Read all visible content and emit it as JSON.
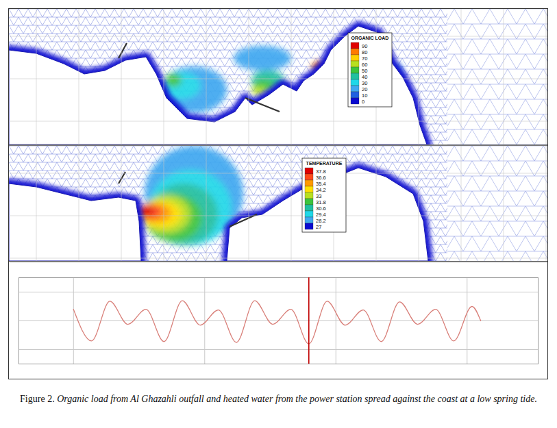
{
  "maps": [
    {
      "color_bar": {
        "title": "ORGANIC LOAD",
        "values": [
          90,
          80,
          70,
          60,
          50,
          40,
          30,
          20,
          10,
          0
        ],
        "colors": [
          "#e00000",
          "#ff7a00",
          "#ffd000",
          "#b8e020",
          "#3cc43c",
          "#20c0a0",
          "#20d8e8",
          "#40a8f0",
          "#2060e0",
          "#0a0ad0"
        ]
      }
    },
    {
      "color_bar": {
        "title": "TEMPERATURE",
        "values": [
          37.8,
          36.6,
          35.4,
          34.2,
          33,
          31.8,
          30.6,
          29.4,
          28.2,
          27
        ],
        "colors": [
          "#e00000",
          "#ff4a1a",
          "#ff9a00",
          "#ffe000",
          "#b8e020",
          "#3cc43c",
          "#20c0a0",
          "#20d8e8",
          "#40a8f0",
          "#0a0ad0"
        ]
      }
    }
  ],
  "chart_data": {
    "type": "line",
    "x": [
      0,
      6.6,
      13.3,
      19.9,
      26.5,
      33.1,
      39.8,
      46.4,
      53,
      59.6,
      66.3,
      72.9,
      79.5,
      86.1,
      92.8,
      99.4,
      106,
      112.6,
      119.3,
      125.9,
      132.5,
      139.1,
      145.8,
      149
    ],
    "values": [
      0.4,
      -0.7,
      0.68,
      -0.12,
      0.4,
      -0.72,
      0.7,
      -0.15,
      0.38,
      -0.75,
      0.7,
      -0.12,
      0.4,
      -0.8,
      0.68,
      -0.15,
      0.38,
      -0.72,
      0.66,
      -0.12,
      0.4,
      -0.7,
      0.5,
      0.0
    ],
    "color": "#d9807a",
    "xlim": [
      -20,
      170
    ],
    "ylim": [
      -1.5,
      1.5
    ],
    "xticks": [
      0,
      48,
      96,
      144
    ],
    "yticks": [
      -1,
      0,
      1
    ],
    "grid": true,
    "tick_labels": false,
    "current_time": 86.1
  },
  "caption": {
    "label": "Figure 2.",
    "text": "Organic load from Al Ghazahli outfall and heated water from the power station spread against the coast at a low spring tide."
  }
}
